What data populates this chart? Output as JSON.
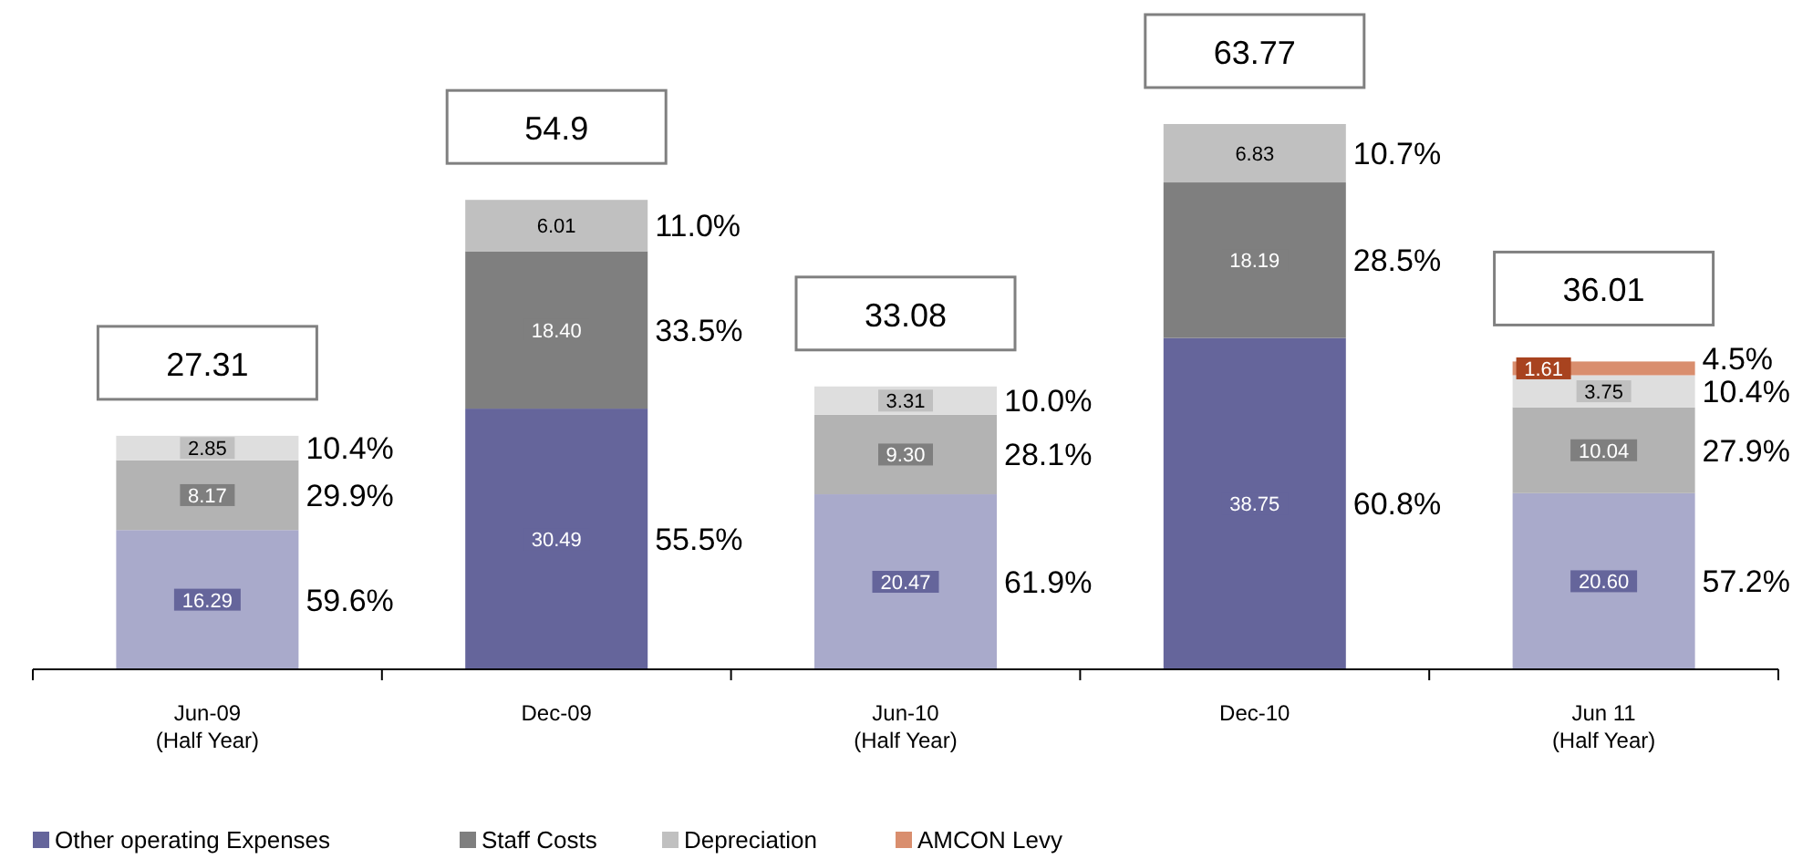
{
  "chart_data": {
    "type": "bar",
    "stacked": true,
    "legend": "bottom left",
    "tick_labels": "x",
    "categories": [
      "Jun-09\n(Half Year)",
      "Dec-09",
      "Jun-10\n(Half Year)",
      "Dec-10",
      "Jun 11\n(Half Year)"
    ],
    "series": [
      {
        "name": "Other operating Expenses",
        "color": "#65659b",
        "colors": [
          "#a9aacb",
          "#65659b",
          "#a9aacb",
          "#65659b",
          "#a9aacb"
        ],
        "values": [
          16.29,
          30.49,
          20.47,
          38.75,
          20.6
        ],
        "value_labels": [
          "16.29",
          "30.49",
          "20.47",
          "38.75",
          "20.60"
        ]
      },
      {
        "name": "Staff Costs",
        "color": "#7f7f7f",
        "colors": [
          "#b3b3b3",
          "#7f7f7f",
          "#b3b3b3",
          "#7f7f7f",
          "#b3b3b3"
        ],
        "values": [
          8.17,
          18.4,
          9.3,
          18.19,
          10.04
        ],
        "value_labels": [
          "8.17",
          "18.40",
          "9.30",
          "18.19",
          "10.04"
        ]
      },
      {
        "name": "Depreciation",
        "color": "#c0c0c0",
        "colors": [
          "#dedede",
          "#c0c0c0",
          "#dedede",
          "#c0c0c0",
          "#dedede"
        ],
        "values": [
          2.85,
          6.01,
          3.31,
          6.83,
          3.75
        ],
        "value_labels": [
          "2.85",
          "6.01",
          "3.31",
          "6.83",
          "3.75"
        ]
      },
      {
        "name": "AMCON Levy",
        "color": "#d98e6e",
        "values": [
          null,
          null,
          null,
          null,
          1.61
        ],
        "value_labels": [
          null,
          null,
          null,
          null,
          "1.61"
        ]
      }
    ],
    "totals": [
      "27.31",
      "54.9",
      "33.08",
      "63.77",
      "36.01"
    ],
    "annotations": [
      "59.6%",
      "29.9%",
      "10.4%",
      "55.5%",
      "33.5%",
      "11.0%",
      "61.9%",
      "28.1%",
      "10.0%",
      "60.8%",
      "28.5%",
      "10.7%",
      "57.2%",
      "27.9%",
      "10.4%",
      "4.5%"
    ]
  }
}
